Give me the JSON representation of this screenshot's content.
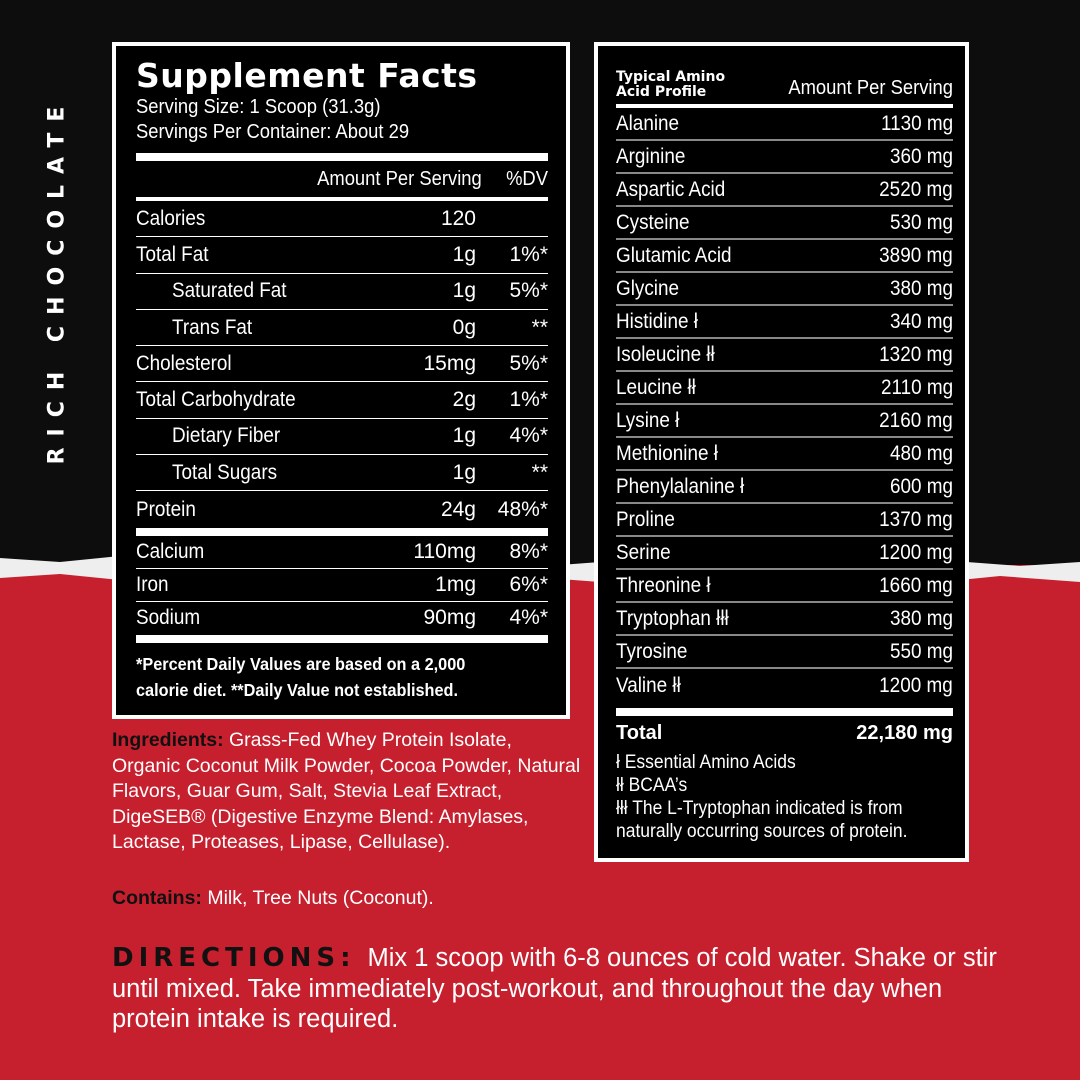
{
  "colors": {
    "red": "#c61f2e",
    "black": "#0d0d0d",
    "white": "#ffffff"
  },
  "flavor": "RICH CHOCOLATE",
  "facts": {
    "title": "Supplement Facts",
    "serving_size": "Serving Size: 1 Scoop (31.3g)",
    "servings_per_container": "Servings Per Container: About 29",
    "amount_header": "Amount Per Serving",
    "dv_header": "%DV",
    "rows": [
      {
        "name": "Calories",
        "amount": "120",
        "dv": "",
        "indent": false
      },
      {
        "name": "Total Fat",
        "amount": "1g",
        "dv": "1%*",
        "indent": false
      },
      {
        "name": "Saturated Fat",
        "amount": "1g",
        "dv": "5%*",
        "indent": true
      },
      {
        "name": "Trans Fat",
        "amount": "0g",
        "dv": "**",
        "indent": true
      },
      {
        "name": "Cholesterol",
        "amount": "15mg",
        "dv": "5%*",
        "indent": false
      },
      {
        "name": "Total Carbohydrate",
        "amount": "2g",
        "dv": "1%*",
        "indent": false
      },
      {
        "name": "Dietary Fiber",
        "amount": "1g",
        "dv": "4%*",
        "indent": true
      },
      {
        "name": "Total Sugars",
        "amount": "1g",
        "dv": "**",
        "indent": true
      },
      {
        "name": "Protein",
        "amount": "24g",
        "dv": "48%*",
        "indent": false
      }
    ],
    "minerals": [
      {
        "name": "Calcium",
        "amount": "110mg",
        "dv": "8%*"
      },
      {
        "name": "Iron",
        "amount": "1mg",
        "dv": "6%*"
      },
      {
        "name": "Sodium",
        "amount": "90mg",
        "dv": "4%*"
      }
    ],
    "footnote_1": "*Percent Daily Values are based on a 2,000",
    "footnote_2": "calorie diet. **Daily Value not established."
  },
  "amino": {
    "title_1": "Typical Amino",
    "title_2": "Acid Profile",
    "amount_header": "Amount Per Serving",
    "rows": [
      {
        "name": "Alanine",
        "value": "1130 mg"
      },
      {
        "name": "Arginine",
        "value": "360 mg"
      },
      {
        "name": "Aspartic Acid",
        "value": "2520 mg"
      },
      {
        "name": "Cysteine",
        "value": "530 mg"
      },
      {
        "name": "Glutamic Acid",
        "value": "3890 mg"
      },
      {
        "name": "Glycine",
        "value": "380 mg"
      },
      {
        "name": "Histidine ł",
        "value": "340 mg"
      },
      {
        "name": "Isoleucine łł",
        "value": "1320 mg"
      },
      {
        "name": "Leucine łł",
        "value": "2110 mg"
      },
      {
        "name": "Lysine ł",
        "value": "2160 mg"
      },
      {
        "name": "Methionine ł",
        "value": "480 mg"
      },
      {
        "name": "Phenylalanine ł",
        "value": "600 mg"
      },
      {
        "name": "Proline",
        "value": "1370 mg"
      },
      {
        "name": "Serine",
        "value": "1200 mg"
      },
      {
        "name": "Threonine ł",
        "value": "1660 mg"
      },
      {
        "name": "Tryptophan łłł",
        "value": "380 mg"
      },
      {
        "name": "Tyrosine",
        "value": "550 mg"
      },
      {
        "name": "Valine łł",
        "value": "1200 mg"
      }
    ],
    "total_label": "Total",
    "total_value": "22,180 mg",
    "legend": [
      "ł  Essential Amino Acids",
      "łł  BCAA’s",
      "łłł The L-Tryptophan indicated is from",
      "naturally occurring sources of protein."
    ]
  },
  "ingredients": {
    "label": "Ingredients:",
    "text": " Grass-Fed Whey Protein Isolate, Organic Coconut Milk Powder, Cocoa Powder, Natural Flavors, Guar Gum, Salt, Stevia Leaf Extract, DigeSEB® (Digestive Enzyme Blend: Amylases, Lactase, Proteases, Lipase, Cellulase)."
  },
  "contains": {
    "label": "Contains:",
    "text": " Milk, Tree Nuts (Coconut)."
  },
  "directions": {
    "label": "DIRECTIONS:",
    "text": "Mix 1 scoop with 6-8 ounces of cold water. Shake or stir until mixed. Take immediately post-workout, and throughout the day when protein intake is required."
  }
}
